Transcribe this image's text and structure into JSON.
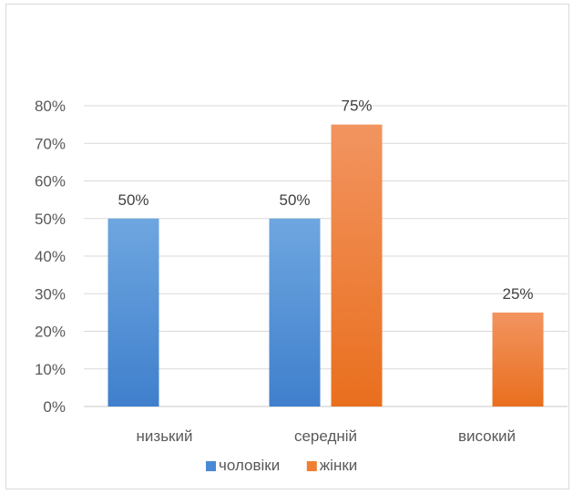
{
  "chart_data": {
    "type": "bar",
    "categories": [
      "низький",
      "середній",
      "високий"
    ],
    "series": [
      {
        "name": "чоловіки",
        "values": [
          50,
          50,
          null
        ],
        "labels": [
          "50%",
          "50%",
          ""
        ],
        "color": "#4a8ad4"
      },
      {
        "name": "жінки",
        "values": [
          null,
          75,
          25
        ],
        "labels": [
          "",
          "75%",
          "25%"
        ],
        "color": "#f07f34"
      }
    ],
    "ylim": [
      0,
      80
    ],
    "yticks": [
      "0%",
      "10%",
      "20%",
      "30%",
      "40%",
      "50%",
      "60%",
      "70%",
      "80%"
    ],
    "grid": true,
    "legend": "bottom"
  }
}
